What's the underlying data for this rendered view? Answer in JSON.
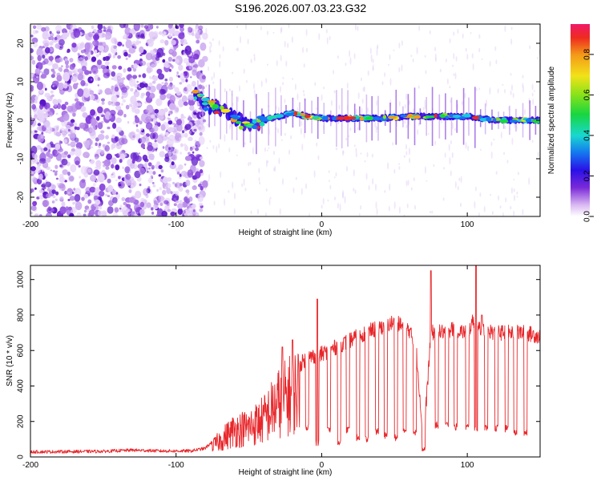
{
  "title": "S196.2026.007.03.23.G32",
  "colors": {
    "snr_line": "#e8262a",
    "axis": "#000000"
  },
  "chart_data": [
    {
      "type": "heatmap",
      "xlabel": "Height of straight line (km)",
      "ylabel": "Frequency (Hz)",
      "xlim": [
        -200,
        150
      ],
      "ylim": [
        -25,
        25
      ],
      "xticks": [
        -200,
        -100,
        0,
        100
      ],
      "yticks": [
        -20,
        -10,
        0,
        10,
        20
      ],
      "colorbar": {
        "label": "Normalized spectral amplitude",
        "range": [
          0,
          0.95
        ],
        "ticks": [
          0.0,
          0.2,
          0.4,
          0.6,
          0.8
        ],
        "tick_labels": [
          "0.0",
          "0.2",
          "0.4",
          "0.6",
          "0.8"
        ]
      },
      "ridge": {
        "x": [
          -85,
          -80,
          -70,
          -60,
          -50,
          -45,
          -40,
          -30,
          -20,
          -10,
          0,
          20,
          40,
          60,
          68,
          80,
          100,
          120,
          150
        ],
        "freq": [
          7,
          4,
          3,
          1,
          -2,
          -1,
          0,
          1,
          2,
          1,
          0.5,
          0.5,
          0.5,
          1,
          1,
          1,
          1,
          0,
          0
        ]
      }
    },
    {
      "type": "line",
      "xlabel": "Height of straight line (km)",
      "ylabel": "SNR (10 * v/v)",
      "xlim": [
        -200,
        150
      ],
      "ylim": [
        0,
        1080
      ],
      "xticks": [
        -200,
        -100,
        0,
        100
      ],
      "yticks": [
        0,
        200,
        400,
        600,
        800,
        1000
      ],
      "envelope": {
        "x": [
          -200,
          -150,
          -130,
          -110,
          -90,
          -80,
          -70,
          -60,
          -50,
          -40,
          -30,
          -20,
          -10,
          0,
          10,
          20,
          30,
          40,
          50,
          60,
          65,
          70,
          75,
          80,
          90,
          100,
          105,
          110,
          120,
          130,
          140,
          150
        ],
        "snr": [
          25,
          28,
          35,
          30,
          30,
          45,
          120,
          200,
          220,
          280,
          400,
          480,
          560,
          580,
          620,
          660,
          700,
          730,
          760,
          720,
          600,
          80,
          700,
          700,
          720,
          700,
          780,
          720,
          700,
          700,
          700,
          680
        ]
      },
      "dips": [
        -10,
        -3,
        5,
        12,
        18,
        25,
        31,
        38,
        44,
        51,
        57,
        64,
        70,
        79,
        86,
        92,
        100,
        106,
        113,
        120,
        127,
        133,
        140
      ],
      "dip_depth": [
        150,
        60,
        130,
        60,
        130,
        90,
        80,
        120,
        100,
        90,
        120,
        120,
        25,
        160,
        160,
        150,
        150,
        140,
        150,
        140,
        140,
        120,
        120
      ],
      "peaks": [
        {
          "x": -27,
          "snr": 620
        },
        {
          "x": -20,
          "snr": 660
        },
        {
          "x": -3,
          "snr": 890
        },
        {
          "x": 75,
          "snr": 1050
        },
        {
          "x": 106,
          "snr": 1085
        },
        {
          "x": 110,
          "snr": 800
        }
      ]
    }
  ]
}
